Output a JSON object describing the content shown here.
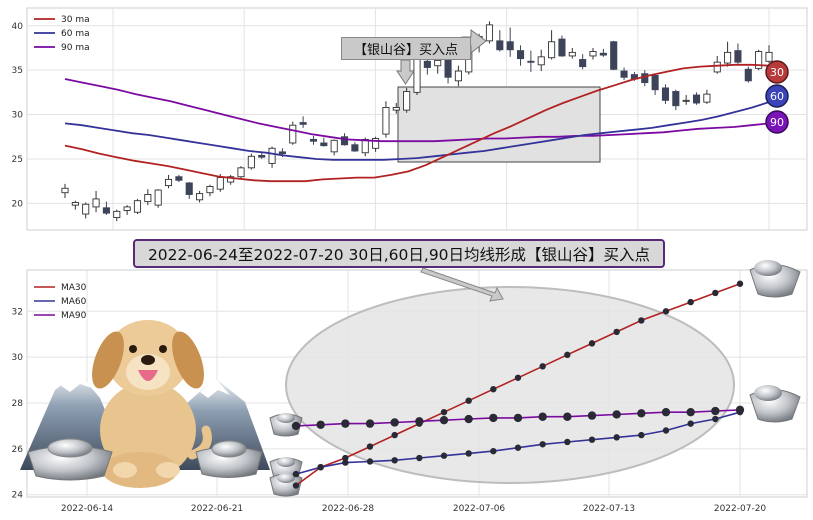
{
  "banner": "2022-06-24至2022-07-20 30日,60日,90日均线形成【银山谷】买入点",
  "callout": "【银山谷】买入点",
  "colors": {
    "ma30": "#b22222",
    "ma60": "#333399",
    "ma90": "#7a0aa0",
    "candle_down": "#3d4459"
  },
  "chart_data": [
    {
      "type": "candlestick",
      "legend": [
        "30 ma",
        "60 ma",
        "90 ma"
      ],
      "ylim": [
        17,
        42
      ],
      "yticks": [
        20,
        25,
        30,
        35,
        40
      ],
      "grid": true,
      "legend_position": "top-left",
      "badges": [
        "30",
        "60",
        "90"
      ],
      "candles": [
        {
          "o": 21.2,
          "h": 22.2,
          "l": 20.6,
          "c": 21.7
        },
        {
          "o": 19.8,
          "h": 20.3,
          "l": 19.3,
          "c": 20.1
        },
        {
          "o": 18.8,
          "h": 20.1,
          "l": 18.3,
          "c": 19.9
        },
        {
          "o": 19.6,
          "h": 21.4,
          "l": 19.0,
          "c": 20.5
        },
        {
          "o": 19.5,
          "h": 20.2,
          "l": 18.7,
          "c": 18.9
        },
        {
          "o": 18.4,
          "h": 19.3,
          "l": 18.0,
          "c": 19.1
        },
        {
          "o": 19.2,
          "h": 19.8,
          "l": 18.7,
          "c": 19.6
        },
        {
          "o": 19.0,
          "h": 20.5,
          "l": 18.8,
          "c": 20.3
        },
        {
          "o": 20.2,
          "h": 21.6,
          "l": 19.8,
          "c": 21.0
        },
        {
          "o": 19.8,
          "h": 21.6,
          "l": 19.5,
          "c": 21.5
        },
        {
          "o": 22.0,
          "h": 23.2,
          "l": 21.7,
          "c": 22.7
        },
        {
          "o": 23.0,
          "h": 23.2,
          "l": 22.4,
          "c": 22.6
        },
        {
          "o": 22.3,
          "h": 22.4,
          "l": 20.5,
          "c": 21.0
        },
        {
          "o": 20.4,
          "h": 21.4,
          "l": 20.1,
          "c": 21.1
        },
        {
          "o": 21.2,
          "h": 22.1,
          "l": 20.8,
          "c": 21.9
        },
        {
          "o": 21.6,
          "h": 23.3,
          "l": 21.3,
          "c": 22.9
        },
        {
          "o": 22.4,
          "h": 23.2,
          "l": 22.1,
          "c": 23.0
        },
        {
          "o": 23.0,
          "h": 24.2,
          "l": 22.8,
          "c": 24.0
        },
        {
          "o": 24.0,
          "h": 25.6,
          "l": 23.8,
          "c": 25.3
        },
        {
          "o": 25.4,
          "h": 25.7,
          "l": 25.0,
          "c": 25.2
        },
        {
          "o": 24.5,
          "h": 26.4,
          "l": 24.0,
          "c": 26.2
        },
        {
          "o": 25.8,
          "h": 26.2,
          "l": 25.2,
          "c": 25.6
        },
        {
          "o": 26.8,
          "h": 29.2,
          "l": 26.6,
          "c": 28.8
        },
        {
          "o": 29.1,
          "h": 29.8,
          "l": 28.5,
          "c": 28.9
        },
        {
          "o": 27.2,
          "h": 27.6,
          "l": 26.6,
          "c": 27.0
        },
        {
          "o": 26.8,
          "h": 27.4,
          "l": 26.4,
          "c": 26.5
        },
        {
          "o": 25.8,
          "h": 27.2,
          "l": 25.4,
          "c": 27.1
        },
        {
          "o": 27.5,
          "h": 27.9,
          "l": 26.5,
          "c": 26.6
        },
        {
          "o": 26.6,
          "h": 26.9,
          "l": 25.8,
          "c": 25.9
        },
        {
          "o": 25.7,
          "h": 27.4,
          "l": 25.3,
          "c": 27.2
        },
        {
          "o": 26.2,
          "h": 27.5,
          "l": 25.8,
          "c": 27.3
        },
        {
          "o": 27.8,
          "h": 31.5,
          "l": 27.4,
          "c": 30.8
        },
        {
          "o": 30.5,
          "h": 31.3,
          "l": 30.1,
          "c": 30.8
        },
        {
          "o": 30.5,
          "h": 33.0,
          "l": 30.2,
          "c": 32.6
        },
        {
          "o": 32.5,
          "h": 37.3,
          "l": 32.2,
          "c": 36.2
        },
        {
          "o": 36.0,
          "h": 37.2,
          "l": 34.5,
          "c": 35.3
        },
        {
          "o": 35.5,
          "h": 36.8,
          "l": 34.6,
          "c": 36.1
        },
        {
          "o": 36.2,
          "h": 37.4,
          "l": 33.5,
          "c": 34.2
        },
        {
          "o": 33.8,
          "h": 35.5,
          "l": 33.2,
          "c": 34.9
        },
        {
          "o": 34.8,
          "h": 38.3,
          "l": 34.5,
          "c": 38.0
        },
        {
          "o": 38.0,
          "h": 39.1,
          "l": 37.0,
          "c": 38.8
        },
        {
          "o": 38.3,
          "h": 40.5,
          "l": 38.0,
          "c": 40.1
        },
        {
          "o": 38.3,
          "h": 39.5,
          "l": 37.1,
          "c": 37.3
        },
        {
          "o": 38.2,
          "h": 39.8,
          "l": 36.5,
          "c": 37.3
        },
        {
          "o": 37.2,
          "h": 37.8,
          "l": 35.5,
          "c": 36.3
        },
        {
          "o": 36.0,
          "h": 37.2,
          "l": 34.8,
          "c": 35.9
        },
        {
          "o": 35.6,
          "h": 37.3,
          "l": 34.9,
          "c": 36.5
        },
        {
          "o": 36.4,
          "h": 39.5,
          "l": 36.2,
          "c": 38.2
        },
        {
          "o": 38.5,
          "h": 38.9,
          "l": 36.5,
          "c": 36.6
        },
        {
          "o": 36.6,
          "h": 37.5,
          "l": 36.3,
          "c": 37.0
        },
        {
          "o": 36.2,
          "h": 36.8,
          "l": 35.1,
          "c": 35.4
        },
        {
          "o": 36.6,
          "h": 37.5,
          "l": 36.2,
          "c": 37.1
        },
        {
          "o": 36.9,
          "h": 37.4,
          "l": 36.5,
          "c": 36.7
        },
        {
          "o": 38.2,
          "h": 38.3,
          "l": 35.0,
          "c": 35.1
        },
        {
          "o": 34.9,
          "h": 35.3,
          "l": 33.9,
          "c": 34.2
        },
        {
          "o": 34.5,
          "h": 34.8,
          "l": 33.8,
          "c": 34.0
        },
        {
          "o": 34.6,
          "h": 35.0,
          "l": 33.2,
          "c": 33.6
        },
        {
          "o": 34.4,
          "h": 34.6,
          "l": 32.2,
          "c": 32.8
        },
        {
          "o": 33.0,
          "h": 33.4,
          "l": 31.2,
          "c": 31.6
        },
        {
          "o": 32.6,
          "h": 32.8,
          "l": 30.5,
          "c": 31.0
        },
        {
          "o": 31.5,
          "h": 32.2,
          "l": 31.1,
          "c": 31.6
        },
        {
          "o": 32.2,
          "h": 32.5,
          "l": 31.1,
          "c": 31.3
        },
        {
          "o": 31.4,
          "h": 32.8,
          "l": 31.2,
          "c": 32.3
        },
        {
          "o": 34.8,
          "h": 36.6,
          "l": 34.6,
          "c": 35.9
        },
        {
          "o": 35.8,
          "h": 38.2,
          "l": 35.4,
          "c": 37.0
        },
        {
          "o": 37.2,
          "h": 38.0,
          "l": 35.6,
          "c": 35.9
        },
        {
          "o": 35.1,
          "h": 35.4,
          "l": 33.6,
          "c": 33.8
        },
        {
          "o": 35.2,
          "h": 37.3,
          "l": 35.0,
          "c": 37.1
        },
        {
          "o": 36.0,
          "h": 37.8,
          "l": 35.8,
          "c": 37.0
        }
      ],
      "ma30": [
        26.5,
        26.1,
        25.6,
        25.2,
        24.8,
        24.5,
        24.2,
        23.8,
        23.4,
        23.0,
        22.8,
        22.6,
        22.5,
        22.5,
        22.5,
        22.7,
        22.8,
        22.9,
        22.9,
        23.2,
        23.6,
        24.3,
        25.2,
        26.1,
        27.0,
        27.9,
        28.7,
        29.6,
        30.5,
        31.3,
        32.0,
        32.7,
        33.3,
        33.9,
        34.4,
        34.8,
        35.2,
        35.4,
        35.5,
        35.6,
        35.6,
        35.5
      ],
      "ma60": [
        29.0,
        28.8,
        28.5,
        28.2,
        27.9,
        27.7,
        27.4,
        27.1,
        26.8,
        26.5,
        26.2,
        25.9,
        25.7,
        25.4,
        25.2,
        25.0,
        24.9,
        24.9,
        24.9,
        24.9,
        25.0,
        25.1,
        25.3,
        25.5,
        25.7,
        25.9,
        26.2,
        26.5,
        26.8,
        27.1,
        27.4,
        27.7,
        27.9,
        28.1,
        28.3,
        28.5,
        28.8,
        29.1,
        29.4,
        29.8,
        30.3,
        30.8,
        31.4
      ],
      "ma90": [
        34.0,
        33.6,
        33.2,
        32.8,
        32.3,
        31.9,
        31.5,
        31.0,
        30.5,
        30.0,
        29.5,
        29.0,
        28.6,
        28.2,
        27.8,
        27.5,
        27.2,
        27.1,
        27.0,
        27.0,
        27.0,
        27.0,
        27.1,
        27.2,
        27.3,
        27.3,
        27.4,
        27.5,
        27.5,
        27.6,
        27.6,
        27.7,
        27.8,
        27.9,
        28.0,
        28.2,
        28.4,
        28.5,
        28.6,
        28.8,
        29.0
      ]
    },
    {
      "type": "line",
      "legend": [
        "MA30",
        "MA60",
        "MA90"
      ],
      "ylim": [
        23.9,
        33.8
      ],
      "yticks": [
        24,
        26,
        28,
        30,
        32
      ],
      "xticks": [
        "2022-06-14",
        "2022-06-21",
        "2022-06-28",
        "2022-07-06",
        "2022-07-13",
        "2022-07-20"
      ],
      "grid": true,
      "legend_position": "top-left",
      "series": [
        {
          "name": "MA30",
          "values": [
            24.4,
            25.2,
            25.6,
            26.1,
            26.6,
            27.1,
            27.6,
            28.1,
            28.6,
            29.1,
            29.6,
            30.1,
            30.6,
            31.1,
            31.6,
            32.0,
            32.4,
            32.8,
            33.2
          ]
        },
        {
          "name": "MA60",
          "values": [
            24.9,
            25.2,
            25.4,
            25.45,
            25.5,
            25.6,
            25.7,
            25.8,
            25.9,
            26.05,
            26.2,
            26.3,
            26.4,
            26.5,
            26.6,
            26.8,
            27.1,
            27.3,
            27.6
          ]
        },
        {
          "name": "MA90",
          "values": [
            27.0,
            27.05,
            27.1,
            27.1,
            27.15,
            27.2,
            27.25,
            27.3,
            27.35,
            27.35,
            27.4,
            27.4,
            27.45,
            27.5,
            27.55,
            27.6,
            27.6,
            27.65,
            27.7
          ]
        }
      ]
    }
  ]
}
